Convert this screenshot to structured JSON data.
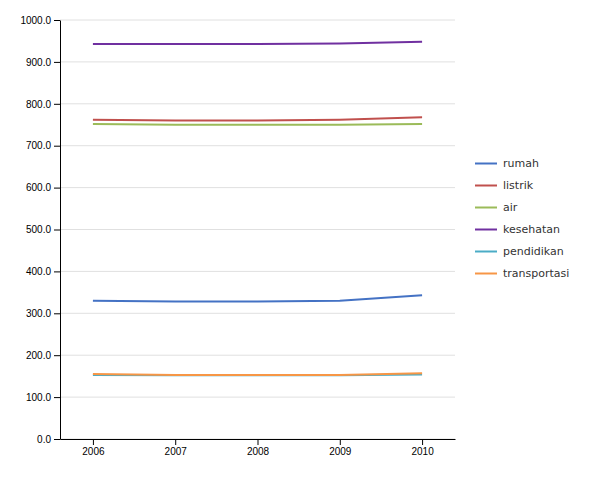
{
  "chart_data": {
    "type": "line",
    "x": [
      2006,
      2007,
      2008,
      2009,
      2010
    ],
    "xlim": [
      2005.6,
      2010.4
    ],
    "xticks": [
      2006,
      2007,
      2008,
      2009,
      2010
    ],
    "ylim": [
      0.0,
      1000.0
    ],
    "yticks": [
      {
        "value": 0,
        "label": "0.0"
      },
      {
        "value": 100,
        "label": "100.0"
      },
      {
        "value": 200,
        "label": "200.0"
      },
      {
        "value": 300,
        "label": "300.0"
      },
      {
        "value": 400,
        "label": "400.0"
      },
      {
        "value": 500,
        "label": "500.0"
      },
      {
        "value": 600,
        "label": "600.0"
      },
      {
        "value": 700,
        "label": "700.0"
      },
      {
        "value": 800,
        "label": "800.0"
      },
      {
        "value": 900,
        "label": "900.0"
      },
      {
        "value": 1000,
        "label": "1000.0"
      }
    ],
    "grid": true,
    "legend": "right",
    "series": [
      {
        "name": "rumah",
        "color": "#4472C4",
        "values": [
          330,
          328,
          328,
          330,
          343
        ]
      },
      {
        "name": "listrik",
        "color": "#C0504D",
        "values": [
          762,
          760,
          760,
          762,
          768
        ]
      },
      {
        "name": "air",
        "color": "#9BBB59",
        "values": [
          752,
          750,
          750,
          750,
          752
        ]
      },
      {
        "name": "kesehatan",
        "color": "#7030A0",
        "values": [
          943,
          943,
          943,
          944,
          948
        ]
      },
      {
        "name": "pendidikan",
        "color": "#4BACC6",
        "values": [
          153,
          152,
          152,
          152,
          154
        ]
      },
      {
        "name": "transportasi",
        "color": "#F79646",
        "values": [
          155,
          153,
          153,
          153,
          157
        ]
      }
    ]
  }
}
